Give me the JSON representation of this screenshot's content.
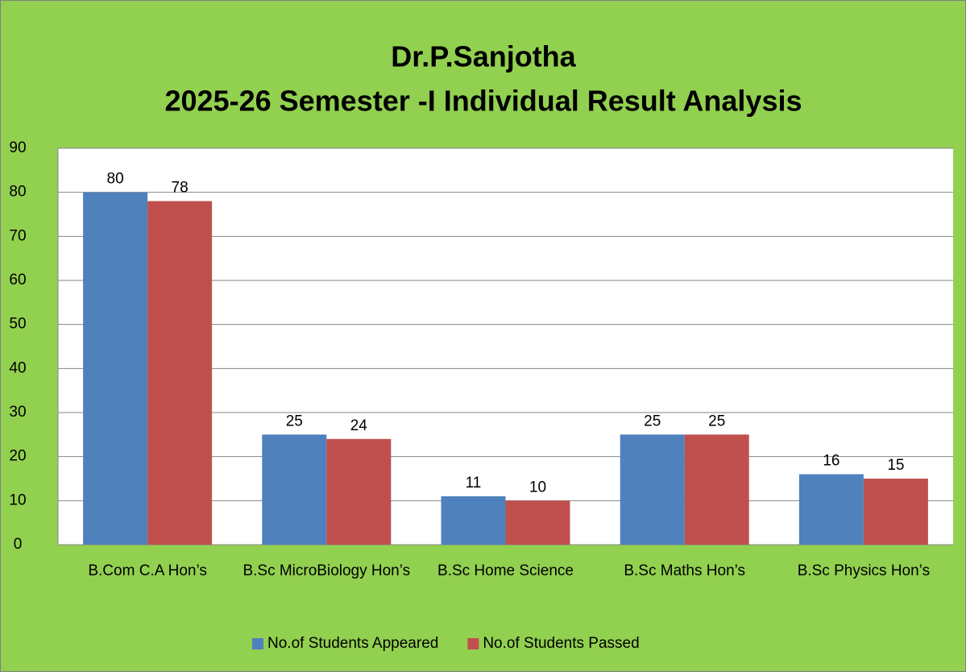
{
  "chart_data": {
    "type": "bar",
    "title": [
      "Dr.P.Sanjotha",
      "2025-26 Semester -I Individual Result Analysis"
    ],
    "categories": [
      "B.Com C.A Hon’s",
      "B.Sc MicroBiology Hon’s",
      "B.Sc Home Science",
      "B.Sc Maths Hon’s",
      "B.Sc Physics Hon’s"
    ],
    "series": [
      {
        "name": "No.of Students Appeared",
        "color": "#4f81bd",
        "values": [
          80,
          25,
          11,
          25,
          16
        ]
      },
      {
        "name": "No.of Students Passed",
        "color": "#c0504d",
        "values": [
          78,
          24,
          10,
          25,
          15
        ]
      }
    ],
    "ylim": [
      0,
      90
    ],
    "yticks": [
      0,
      10,
      20,
      30,
      40,
      50,
      60,
      70,
      80,
      90
    ],
    "grid": true,
    "legend": "bottom"
  }
}
